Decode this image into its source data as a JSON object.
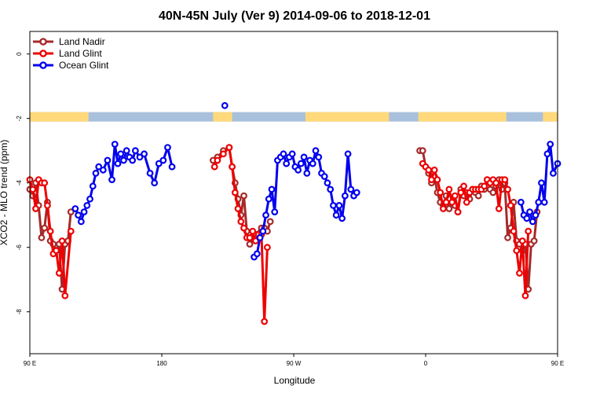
{
  "chart_data": {
    "type": "line",
    "title": "40N-45N July (Ver 9)   2014-09-06 to 2018-12-01",
    "xlabel": "Longitude",
    "ylabel": "XCO2 - MLO trend (ppm)",
    "xlim": [
      90,
      450
    ],
    "ylim": [
      -9.3,
      0.7
    ],
    "x_ticks": [
      {
        "value": 90,
        "label": "90 E"
      },
      {
        "value": 180,
        "label": "180"
      },
      {
        "value": 270,
        "label": "90 W"
      },
      {
        "value": 360,
        "label": "0"
      },
      {
        "value": 450,
        "label": "90 E"
      },
      {
        "value": 540,
        "label": "180"
      }
    ],
    "y_ticks": [
      {
        "value": 0,
        "label": "0"
      },
      {
        "value": -2,
        "label": "-2"
      },
      {
        "value": -4,
        "label": "-4"
      },
      {
        "value": -6,
        "label": "-6"
      },
      {
        "value": -8,
        "label": "-8"
      }
    ],
    "legend_position": "top-left",
    "land_ocean_strip": {
      "y_center": -1.95,
      "land_color": "#ffd97a",
      "ocean_color": "#a9c0dd",
      "land_ranges": [
        [
          90,
          130
        ],
        [
          215,
          228
        ],
        [
          278,
          335
        ],
        [
          355,
          415
        ],
        [
          440,
          450
        ]
      ]
    },
    "series": [
      {
        "name": "Land Nadir",
        "color": "#a52a2a",
        "segments": [
          [
            [
              90,
              -4.2
            ],
            [
              92,
              -4.4
            ],
            [
              94,
              -4.0
            ],
            [
              96,
              -4.7
            ],
            [
              98,
              -5.7
            ],
            [
              100,
              -5.4
            ],
            [
              102,
              -4.6
            ],
            [
              104,
              -5.8
            ],
            [
              106,
              -5.9
            ],
            [
              108,
              -6.1
            ],
            [
              110,
              -5.9
            ],
            [
              112,
              -7.3
            ],
            [
              114,
              -5.9
            ],
            [
              116,
              -5.8
            ],
            [
              118,
              -4.9
            ]
          ],
          [
            [
              215,
              -3.3
            ],
            [
              218,
              -3.2
            ],
            [
              222,
              -3.0
            ],
            [
              226,
              -2.9
            ],
            [
              228,
              -3.5
            ],
            [
              230,
              -4.0
            ],
            [
              232,
              -4.5
            ],
            [
              234,
              -5.0
            ],
            [
              236,
              -4.4
            ],
            [
              238,
              -5.5
            ],
            [
              240,
              -5.9
            ],
            [
              244,
              -5.6
            ],
            [
              248,
              -5.4
            ],
            [
              250,
              -5.4
            ],
            [
              252,
              -5.5
            ],
            [
              254,
              -5.2
            ]
          ],
          [
            [
              356,
              -3.0
            ],
            [
              358,
              -3.0
            ],
            [
              360,
              -3.5
            ],
            [
              362,
              -3.7
            ],
            [
              364,
              -4.0
            ],
            [
              366,
              -3.8
            ],
            [
              368,
              -4.3
            ],
            [
              370,
              -4.6
            ],
            [
              372,
              -4.7
            ],
            [
              374,
              -4.4
            ],
            [
              376,
              -4.8
            ],
            [
              378,
              -4.6
            ],
            [
              380,
              -4.7
            ],
            [
              382,
              -4.9
            ],
            [
              384,
              -4.2
            ],
            [
              386,
              -4.4
            ],
            [
              388,
              -4.3
            ],
            [
              390,
              -4.5
            ],
            [
              392,
              -4.2
            ],
            [
              394,
              -4.3
            ],
            [
              396,
              -4.4
            ],
            [
              398,
              -4.1
            ],
            [
              400,
              -4.2
            ],
            [
              402,
              -3.9
            ],
            [
              404,
              -4.2
            ],
            [
              406,
              -4.3
            ],
            [
              408,
              -4.1
            ],
            [
              410,
              -3.9
            ],
            [
              412,
              -4.2
            ],
            [
              414,
              -4.0
            ],
            [
              416,
              -5.7
            ],
            [
              418,
              -5.4
            ],
            [
              420,
              -4.6
            ],
            [
              422,
              -5.8
            ],
            [
              424,
              -5.9
            ],
            [
              426,
              -6.1
            ],
            [
              428,
              -5.9
            ],
            [
              430,
              -7.3
            ],
            [
              432,
              -5.9
            ],
            [
              434,
              -5.8
            ],
            [
              436,
              -4.9
            ]
          ]
        ]
      },
      {
        "name": "Land Glint",
        "color": "#ee0000",
        "segments": [
          [
            [
              90,
              -3.9
            ],
            [
              92,
              -4.2
            ],
            [
              94,
              -4.8
            ],
            [
              96,
              -3.9
            ],
            [
              98,
              -4.0
            ],
            [
              100,
              -4.0
            ],
            [
              102,
              -4.7
            ],
            [
              104,
              -5.5
            ],
            [
              106,
              -6.2
            ],
            [
              108,
              -6.1
            ],
            [
              110,
              -6.8
            ],
            [
              112,
              -5.8
            ],
            [
              114,
              -7.5
            ],
            [
              118,
              -5.5
            ]
          ],
          [
            [
              216,
              -3.5
            ],
            [
              218,
              -3.3
            ],
            [
              222,
              -3.1
            ],
            [
              226,
              -2.9
            ],
            [
              228,
              -3.5
            ],
            [
              230,
              -4.3
            ],
            [
              232,
              -4.8
            ],
            [
              234,
              -5.2
            ],
            [
              236,
              -5.4
            ],
            [
              238,
              -5.7
            ],
            [
              240,
              -5.7
            ],
            [
              242,
              -5.5
            ],
            [
              244,
              -5.8
            ],
            [
              246,
              -5.6
            ],
            [
              248,
              -5.6
            ],
            [
              250,
              -8.3
            ],
            [
              252,
              -6.0
            ]
          ],
          [
            [
              358,
              -3.4
            ],
            [
              360,
              -3.5
            ],
            [
              362,
              -3.6
            ],
            [
              364,
              -3.9
            ],
            [
              366,
              -3.6
            ],
            [
              368,
              -3.9
            ],
            [
              370,
              -4.3
            ],
            [
              372,
              -4.8
            ],
            [
              374,
              -4.6
            ],
            [
              376,
              -4.2
            ],
            [
              378,
              -4.6
            ],
            [
              380,
              -4.4
            ],
            [
              382,
              -4.9
            ],
            [
              384,
              -4.3
            ],
            [
              386,
              -4.1
            ],
            [
              388,
              -4.6
            ],
            [
              390,
              -4.3
            ],
            [
              392,
              -4.2
            ],
            [
              394,
              -4.2
            ],
            [
              396,
              -4.2
            ],
            [
              398,
              -4.2
            ],
            [
              400,
              -4.1
            ],
            [
              402,
              -3.9
            ],
            [
              404,
              -4.0
            ],
            [
              406,
              -3.9
            ],
            [
              408,
              -4.0
            ],
            [
              410,
              -4.8
            ],
            [
              412,
              -3.9
            ],
            [
              414,
              -3.9
            ],
            [
              416,
              -4.2
            ],
            [
              418,
              -4.7
            ],
            [
              420,
              -5.5
            ],
            [
              422,
              -6.1
            ],
            [
              424,
              -6.8
            ],
            [
              426,
              -5.8
            ],
            [
              428,
              -7.5
            ],
            [
              430,
              -5.5
            ]
          ]
        ]
      },
      {
        "name": "Ocean Glint",
        "color": "#0000ee",
        "segments": [
          [
            [
              121,
              -4.8
            ],
            [
              123,
              -5.0
            ],
            [
              125,
              -5.2
            ],
            [
              127,
              -4.9
            ],
            [
              129,
              -4.7
            ],
            [
              131,
              -4.5
            ],
            [
              133,
              -4.1
            ],
            [
              135,
              -3.7
            ],
            [
              137,
              -3.5
            ],
            [
              140,
              -3.6
            ],
            [
              143,
              -3.3
            ],
            [
              146,
              -3.9
            ],
            [
              148,
              -2.8
            ],
            [
              150,
              -3.4
            ],
            [
              152,
              -3.1
            ],
            [
              154,
              -3.3
            ],
            [
              156,
              -3.0
            ],
            [
              158,
              -3.2
            ],
            [
              160,
              -3.3
            ],
            [
              162,
              -3.0
            ],
            [
              165,
              -3.2
            ],
            [
              168,
              -3.1
            ],
            [
              172,
              -3.7
            ],
            [
              175,
              -4.0
            ],
            [
              178,
              -3.4
            ],
            [
              181,
              -3.3
            ],
            [
              184,
              -2.9
            ],
            [
              187,
              -3.5
            ]
          ],
          [
            [
              223,
              -1.6
            ]
          ],
          [
            [
              243,
              -6.3
            ],
            [
              245,
              -6.2
            ],
            [
              247,
              -5.7
            ],
            [
              249,
              -5.5
            ],
            [
              251,
              -5.0
            ],
            [
              253,
              -4.5
            ],
            [
              255,
              -4.2
            ],
            [
              257,
              -4.9
            ],
            [
              259,
              -3.3
            ],
            [
              261,
              -3.2
            ],
            [
              263,
              -3.1
            ],
            [
              265,
              -3.4
            ],
            [
              267,
              -3.2
            ],
            [
              269,
              -3.1
            ],
            [
              271,
              -3.5
            ],
            [
              273,
              -3.6
            ],
            [
              275,
              -3.4
            ],
            [
              277,
              -3.2
            ],
            [
              279,
              -3.7
            ],
            [
              281,
              -3.3
            ],
            [
              283,
              -3.4
            ],
            [
              285,
              -3.0
            ],
            [
              287,
              -3.2
            ],
            [
              289,
              -3.7
            ],
            [
              291,
              -3.8
            ],
            [
              293,
              -4.0
            ],
            [
              295,
              -4.2
            ],
            [
              297,
              -4.7
            ],
            [
              299,
              -5.0
            ],
            [
              301,
              -4.7
            ],
            [
              303,
              -5.1
            ],
            [
              305,
              -4.4
            ],
            [
              307,
              -3.1
            ],
            [
              309,
              -4.2
            ],
            [
              311,
              -4.4
            ],
            [
              313,
              -4.3
            ]
          ],
          [
            [
              425,
              -4.6
            ],
            [
              427,
              -5.0
            ],
            [
              429,
              -5.1
            ],
            [
              431,
              -4.9
            ],
            [
              433,
              -5.2
            ],
            [
              435,
              -5.0
            ],
            [
              437,
              -4.6
            ],
            [
              439,
              -4.0
            ],
            [
              441,
              -4.6
            ],
            [
              443,
              -3.1
            ],
            [
              445,
              -2.8
            ],
            [
              447,
              -3.7
            ],
            [
              450,
              -3.4
            ]
          ]
        ]
      }
    ]
  }
}
